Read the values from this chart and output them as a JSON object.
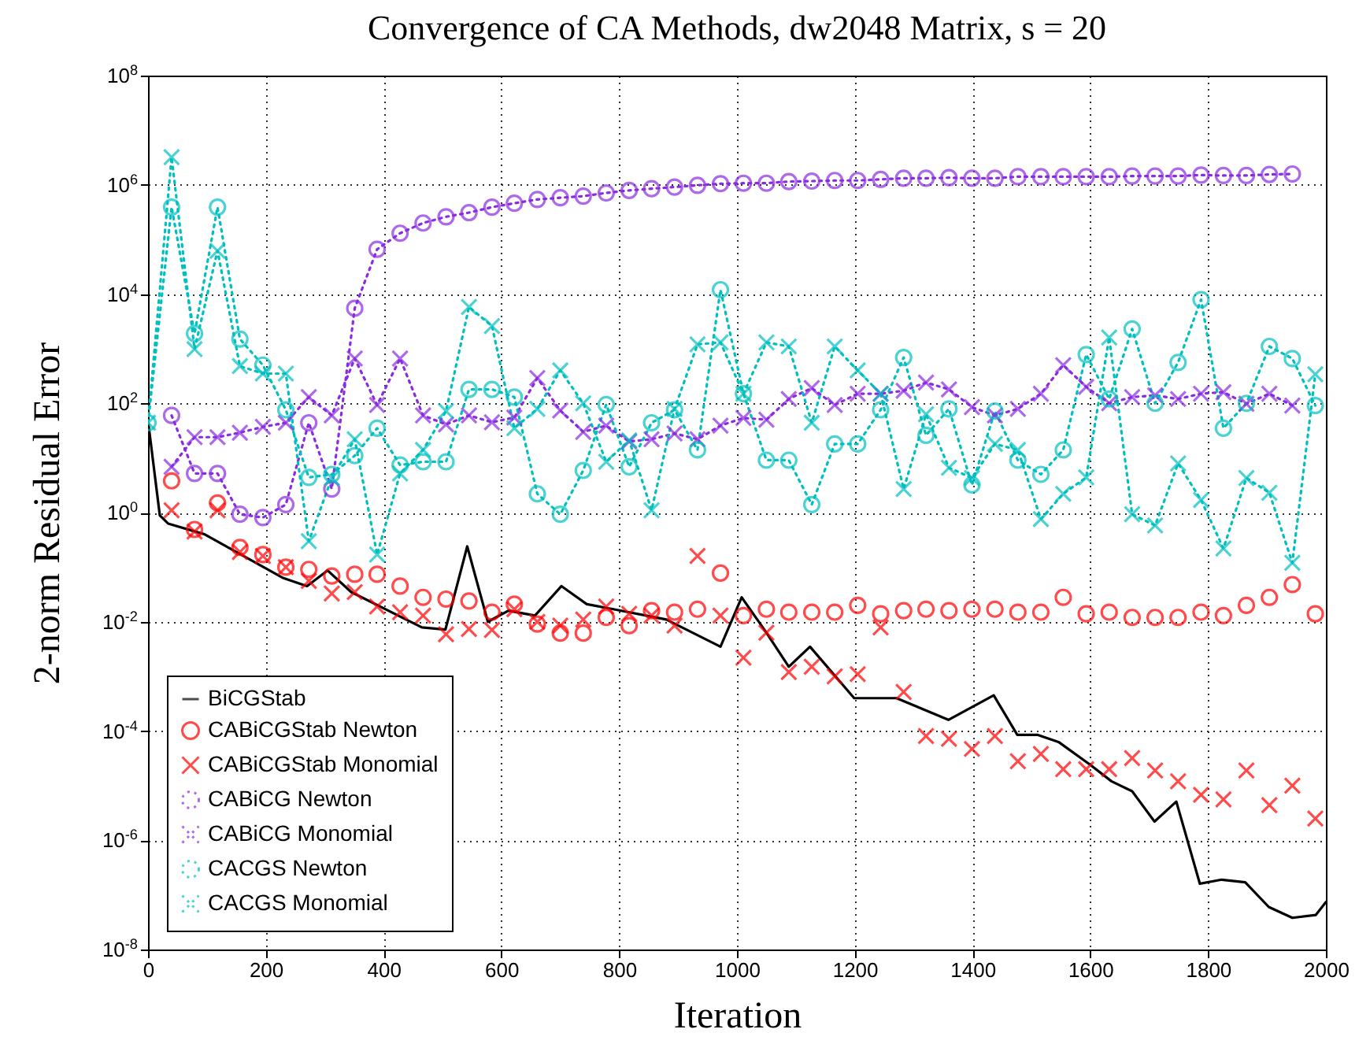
{
  "chart_data": {
    "type": "line",
    "title": "Convergence of CA Methods, dw2048 Matrix, s = 20",
    "xlabel": "Iteration",
    "ylabel": "2-norm Residual Error",
    "x": [
      40,
      79,
      118,
      156,
      195,
      234,
      273,
      312,
      351,
      389,
      428,
      467,
      506,
      545,
      584,
      622,
      661,
      700,
      739,
      778,
      817,
      855,
      894,
      933,
      972,
      1011,
      1050,
      1088,
      1127,
      1166,
      1205,
      1244,
      1283,
      1321,
      1360,
      1399,
      1438,
      1477,
      1516,
      1554,
      1593,
      1632,
      1671,
      1710,
      1749,
      1788,
      1826,
      1865,
      1904,
      1943,
      1982
    ],
    "series": [
      {
        "name": "BiCGStab",
        "type": "line",
        "color": "#000000",
        "line_style": "solid",
        "marker": "none",
        "x": [
          0,
          20,
          34,
          96,
          150,
          230,
          270,
          305,
          345,
          465,
          505,
          542,
          577,
          612,
          657,
          702,
          745,
          790,
          880,
          972,
          1008,
          1048,
          1088,
          1124,
          1199,
          1271,
          1359,
          1436,
          1476,
          1511,
          1546,
          1600,
          1636,
          1671,
          1709,
          1746,
          1786,
          1823,
          1863,
          1903,
          1943,
          1983,
          2000
        ],
        "values": [
          48,
          0.89,
          0.63,
          0.4,
          0.19,
          0.063,
          0.045,
          0.087,
          0.035,
          0.0079,
          0.0072,
          0.24,
          0.01,
          0.016,
          0.013,
          0.045,
          0.021,
          0.017,
          0.011,
          0.0035,
          0.028,
          0.0068,
          0.0015,
          0.0035,
          0.0004,
          0.0004,
          0.00016,
          0.00045,
          8.5e-05,
          8.5e-05,
          6.3e-05,
          2.4e-05,
          1.2e-05,
          7.9e-06,
          2.2e-06,
          5.1e-06,
          1.6e-07,
          1.9e-07,
          1.7e-07,
          6e-08,
          3.8e-08,
          4.3e-08,
          7.4e-08
        ]
      },
      {
        "name": "CABiCGStab Newton",
        "type": "scatter",
        "color": "#ff0000",
        "marker": "circle",
        "values": [
          3.8,
          0.49,
          1.5,
          0.23,
          0.17,
          0.1,
          0.091,
          0.069,
          0.074,
          0.074,
          0.045,
          0.028,
          0.026,
          0.024,
          0.015,
          0.021,
          0.0091,
          0.0062,
          0.0062,
          0.012,
          0.0085,
          0.016,
          0.015,
          0.017,
          0.078,
          0.013,
          0.017,
          0.015,
          0.015,
          0.015,
          0.02,
          0.014,
          0.016,
          0.017,
          0.016,
          0.017,
          0.017,
          0.015,
          0.015,
          0.028,
          0.014,
          0.015,
          0.012,
          0.012,
          0.012,
          0.015,
          0.013,
          0.02,
          0.028,
          0.048,
          0.014
        ]
      },
      {
        "name": "CABiCGStab Monomial",
        "type": "scatter",
        "color": "#ff0000",
        "marker": "cross",
        "values": [
          1.1,
          0.45,
          1.1,
          0.19,
          0.16,
          0.1,
          0.056,
          0.033,
          0.035,
          0.019,
          0.015,
          0.013,
          0.0059,
          0.0074,
          0.0071,
          0.017,
          0.01,
          0.0085,
          0.011,
          0.019,
          0.014,
          0.013,
          0.0085,
          0.16,
          0.013,
          0.0022,
          0.0063,
          0.0012,
          0.0015,
          0.001,
          0.0011,
          0.0079,
          0.00052,
          8.1e-05,
          7.2e-05,
          4.7e-05,
          8.1e-05,
          2.8e-05,
          3.8e-05,
          2e-05,
          2e-05,
          2e-05,
          3.2e-05,
          1.9e-05,
          1.2e-05,
          6.8e-06,
          5.6e-06,
          1.9e-05,
          4.4e-06,
          1e-05,
          2.5e-06
        ]
      },
      {
        "name": "CABiCG Newton",
        "type": "line",
        "color": "#8a2be2",
        "line_style": "dotted",
        "marker": "circle",
        "x": [
          40,
          79,
          118,
          156,
          195,
          234,
          273,
          312,
          351,
          389,
          428,
          467,
          506,
          545,
          584,
          622,
          661,
          700,
          739,
          778,
          817,
          855,
          894,
          933,
          972,
          1011,
          1050,
          1088,
          1127,
          1166,
          1205,
          1244,
          1283,
          1321,
          1360,
          1399,
          1438,
          1477,
          1516,
          1554,
          1593,
          1632,
          1671,
          1710,
          1749,
          1788,
          1826,
          1865,
          1904,
          1943
        ],
        "values": [
          60,
          5.2,
          5.2,
          0.93,
          0.81,
          1.4,
          44,
          2.7,
          5500,
          66000,
          130000,
          200000,
          260000,
          310000,
          390000,
          460000,
          540000,
          580000,
          620000,
          710000,
          790000,
          850000,
          910000,
          980000,
          1050000,
          1070000,
          1070000,
          1150000,
          1170000,
          1200000,
          1200000,
          1260000,
          1320000,
          1320000,
          1350000,
          1320000,
          1320000,
          1410000,
          1410000,
          1410000,
          1410000,
          1410000,
          1450000,
          1450000,
          1450000,
          1510000,
          1480000,
          1480000,
          1550000,
          1580000
        ]
      },
      {
        "name": "CABiCG Monomial",
        "type": "line",
        "color": "#8a2be2",
        "line_style": "dotted",
        "marker": "cross",
        "x": [
          40,
          79,
          118,
          156,
          195,
          234,
          273,
          312,
          351,
          389,
          428,
          467,
          506,
          545,
          584,
          622,
          661,
          700,
          739,
          778,
          817,
          855,
          894,
          933,
          972,
          1011,
          1050,
          1088,
          1127,
          1166,
          1205,
          1244,
          1283,
          1321,
          1360,
          1399,
          1438,
          1477,
          1516,
          1554,
          1593,
          1632,
          1671,
          1710,
          1749,
          1788,
          1826,
          1865,
          1904,
          1943
        ],
        "values": [
          6.9,
          24,
          24,
          29,
          37,
          44,
          130,
          60,
          660,
          93,
          660,
          60,
          41,
          60,
          45,
          55,
          290,
          74,
          30,
          39,
          20,
          22,
          28,
          22,
          39,
          54,
          50,
          120,
          190,
          93,
          150,
          150,
          170,
          240,
          180,
          85,
          60,
          79,
          150,
          500,
          200,
          100,
          130,
          140,
          120,
          150,
          160,
          98,
          150,
          91
        ]
      },
      {
        "name": "CACGS Newton",
        "type": "line",
        "color": "#00bfbf",
        "line_style": "dotted",
        "marker": "circle",
        "x": [
          0,
          40,
          79,
          118,
          156,
          195,
          234,
          273,
          312,
          351,
          389,
          428,
          467,
          506,
          545,
          584,
          622,
          661,
          700,
          739,
          778,
          817,
          855,
          894,
          933,
          972,
          1011,
          1050,
          1088,
          1127,
          1166,
          1205,
          1244,
          1283,
          1321,
          1360,
          1399,
          1438,
          1477,
          1516,
          1554,
          1593,
          1632,
          1671,
          1710,
          1749,
          1788,
          1826,
          1865,
          1904,
          1943,
          1982
        ],
        "values": [
          44,
          390000,
          1900,
          390000,
          1500,
          500,
          76,
          4.4,
          5,
          11,
          35,
          7.4,
          8.5,
          8.5,
          180,
          180,
          130,
          2.2,
          0.93,
          5.9,
          95,
          6.9,
          44,
          76,
          14,
          12000,
          150,
          9.1,
          9.1,
          1.4,
          18,
          18,
          76,
          690,
          26,
          79,
          3.2,
          72,
          9.1,
          5,
          14,
          780,
          120,
          2300,
          100,
          560,
          7900,
          35,
          100,
          1100,
          660,
          91
        ]
      },
      {
        "name": "CACGS Monomial",
        "type": "line",
        "color": "#00bfbf",
        "line_style": "dotted",
        "marker": "cross",
        "x": [
          0,
          40,
          79,
          118,
          156,
          195,
          234,
          273,
          312,
          351,
          389,
          428,
          467,
          506,
          545,
          584,
          622,
          661,
          700,
          739,
          778,
          817,
          855,
          894,
          933,
          972,
          1011,
          1050,
          1088,
          1127,
          1166,
          1205,
          1244,
          1283,
          1321,
          1360,
          1399,
          1438,
          1477,
          1516,
          1554,
          1593,
          1632,
          1671,
          1710,
          1749,
          1788,
          1826,
          1865,
          1904,
          1943,
          1982
        ],
        "values": [
          44,
          3200000,
          980,
          62000,
          480,
          350,
          350,
          0.3,
          4.3,
          22,
          0.17,
          5.2,
          14,
          72,
          5800,
          2600,
          35,
          79,
          400,
          100,
          8.5,
          21,
          1.1,
          79,
          1200,
          1300,
          150,
          1300,
          1100,
          44,
          1100,
          400,
          150,
          2.7,
          63,
          6.6,
          4.3,
          18,
          14,
          0.76,
          2.2,
          4.4,
          1600,
          0.93,
          0.58,
          7.9,
          1.7,
          0.22,
          4.3,
          2.3,
          0.12,
          340
        ]
      }
    ],
    "log": "y",
    "xlim": [
      0,
      2000
    ],
    "xticks": [
      0,
      200,
      400,
      600,
      800,
      1000,
      1200,
      1400,
      1600,
      1800,
      2000
    ],
    "ylim": [
      1e-08,
      100000000.0
    ],
    "yticks": [
      {
        "value": 1e-08,
        "label": "10$^{-8}$"
      },
      {
        "value": 1e-06,
        "label": "10$^{-6}$"
      },
      {
        "value": 0.0001,
        "label": "10$^{-4}$"
      },
      {
        "value": 0.01,
        "label": "10$^{-2}$"
      },
      {
        "value": 1,
        "label": "10$^{0}$"
      },
      {
        "value": 100,
        "label": "10$^{2}$"
      },
      {
        "value": 10000,
        "label": "10$^{4}$"
      },
      {
        "value": 1000000,
        "label": "10$^{6}$"
      },
      {
        "value": 100000000,
        "label": "10$^{8}$"
      }
    ],
    "grid": true,
    "legend": "bottom left"
  }
}
